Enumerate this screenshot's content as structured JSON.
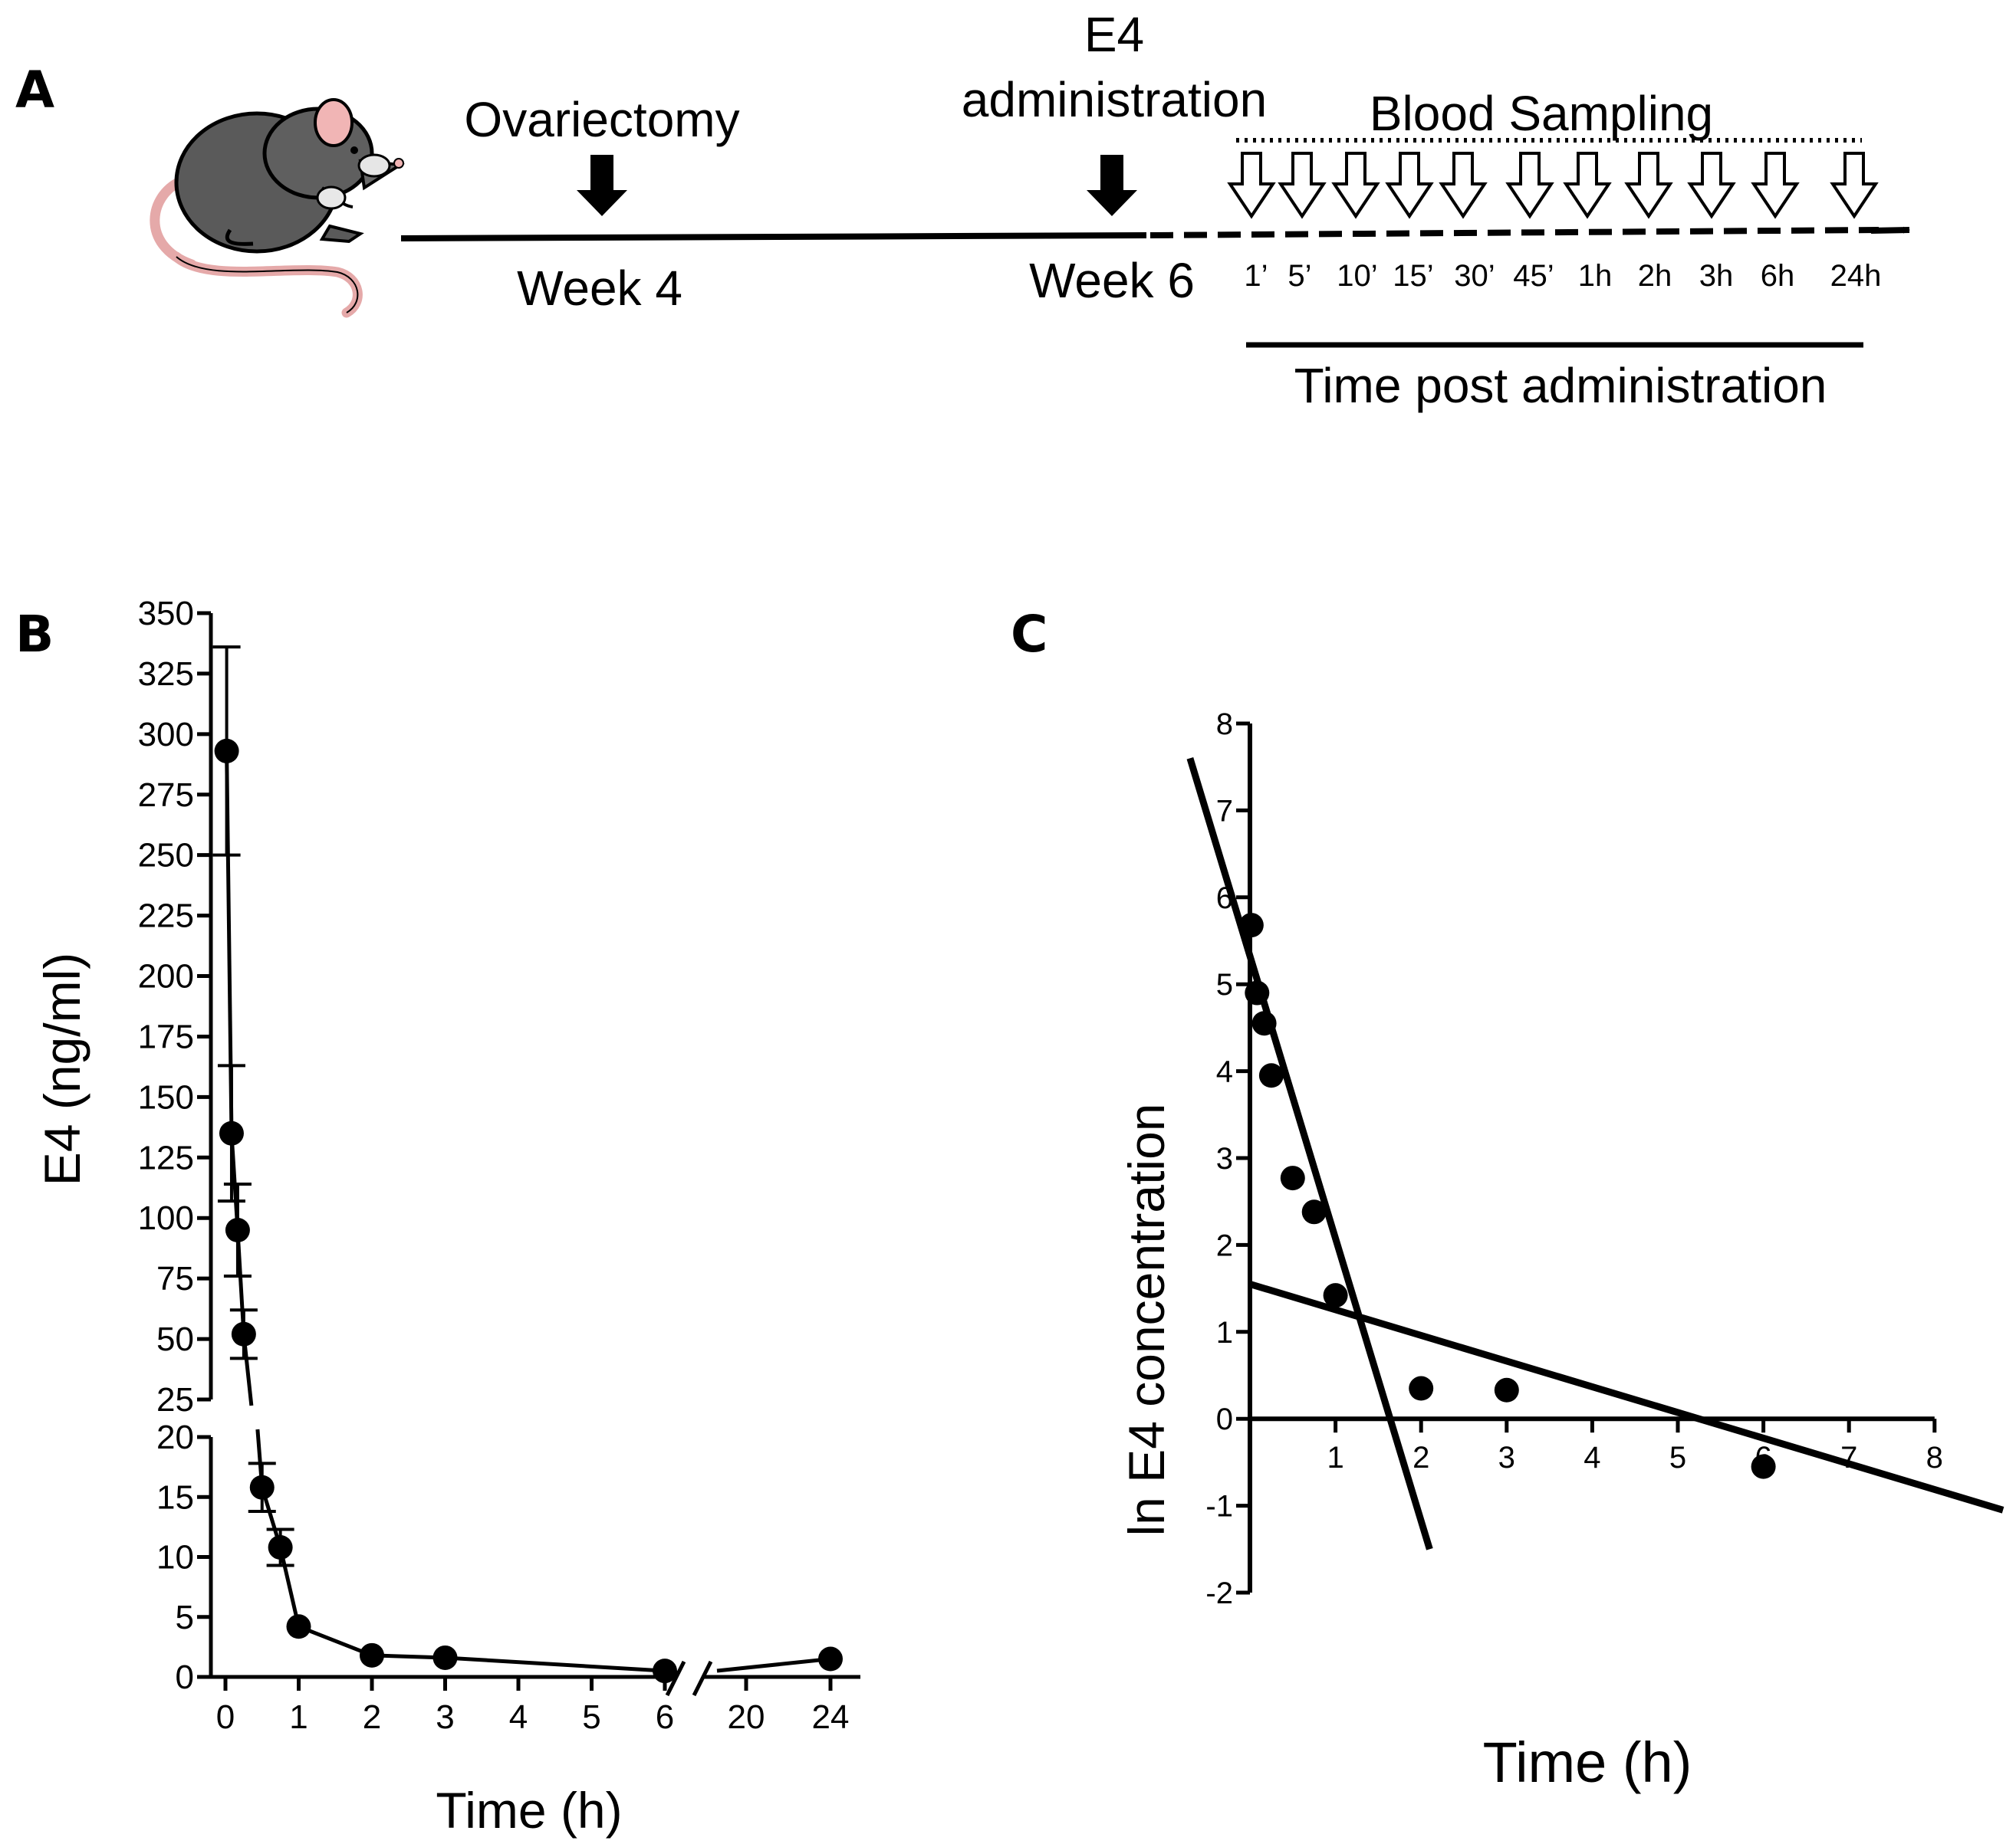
{
  "panel_a": {
    "label": "A",
    "ovariectomy": "Ovariectomy",
    "week4": "Week 4",
    "e4_line1": "E4",
    "e4_line2": "administration",
    "week6": "Week 6",
    "blood_sampling": "Blood Sampling",
    "time_post": "Time post administration",
    "sample_times": [
      "1’",
      "5’",
      "10’",
      "15’",
      "30’",
      "45’",
      "1h",
      "2h",
      "3h",
      "6h",
      "24h"
    ]
  },
  "chart_data": [
    {
      "panel": "B",
      "type": "line",
      "xlabel": "Time (h)",
      "ylabel": "E4 (ng/ml)",
      "x_ticks": [
        "0",
        "1",
        "2",
        "3",
        "4",
        "5",
        "6",
        "20",
        "24"
      ],
      "y_ticks": [
        "0",
        "5",
        "10",
        "15",
        "20",
        "25",
        "50",
        "75",
        "100",
        "125",
        "150",
        "175",
        "200",
        "225",
        "250",
        "275",
        "300",
        "325",
        "350"
      ],
      "y_axis_break": [
        20,
        25
      ],
      "x_axis_break": [
        6,
        20
      ],
      "series": [
        {
          "x": [
            0.0167,
            0.0833,
            0.1667,
            0.25,
            0.5,
            0.75,
            1,
            2,
            3,
            6,
            24
          ],
          "y": [
            293,
            135,
            95,
            52,
            15.8,
            10.8,
            4.2,
            1.8,
            1.6,
            0.5,
            1.5
          ],
          "error": [
            43,
            28,
            19,
            10,
            2.0,
            1.5,
            0,
            0,
            0,
            0,
            0
          ]
        }
      ]
    },
    {
      "panel": "C",
      "type": "scatter",
      "xlabel": "Time (h)",
      "ylabel": "ln E4 concentration",
      "xlim": [
        0,
        8
      ],
      "ylim": [
        -2,
        8
      ],
      "x_ticks": [
        "1",
        "2",
        "3",
        "4",
        "5",
        "6",
        "7",
        "8"
      ],
      "y_ticks": [
        "-2",
        "-1",
        "0",
        "1",
        "2",
        "3",
        "4",
        "5",
        "6",
        "7",
        "8"
      ],
      "points": {
        "x": [
          0.0167,
          0.0833,
          0.1667,
          0.25,
          0.5,
          0.75,
          1,
          2,
          3,
          6
        ],
        "y": [
          5.68,
          4.9,
          4.55,
          3.95,
          2.77,
          2.38,
          1.42,
          0.35,
          0.33,
          -0.55
        ]
      },
      "fit_lines": [
        {
          "x": [
            -0.7,
            2.1
          ],
          "y": [
            7.6,
            -1.5
          ]
        },
        {
          "x": [
            0,
            8.8
          ],
          "y": [
            1.55,
            -1.05
          ]
        }
      ]
    }
  ]
}
